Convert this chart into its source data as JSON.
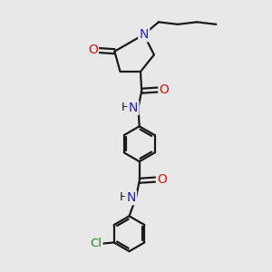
{
  "bg_color": "#e8e8e8",
  "bond_color": "#1a1a1a",
  "N_color": "#2020cc",
  "O_color": "#dd1111",
  "Cl_color": "#228822",
  "lw": 1.6,
  "figsize": [
    3.0,
    3.0
  ],
  "dpi": 100,
  "xlim": [
    0,
    10
  ],
  "ylim": [
    0,
    12
  ]
}
